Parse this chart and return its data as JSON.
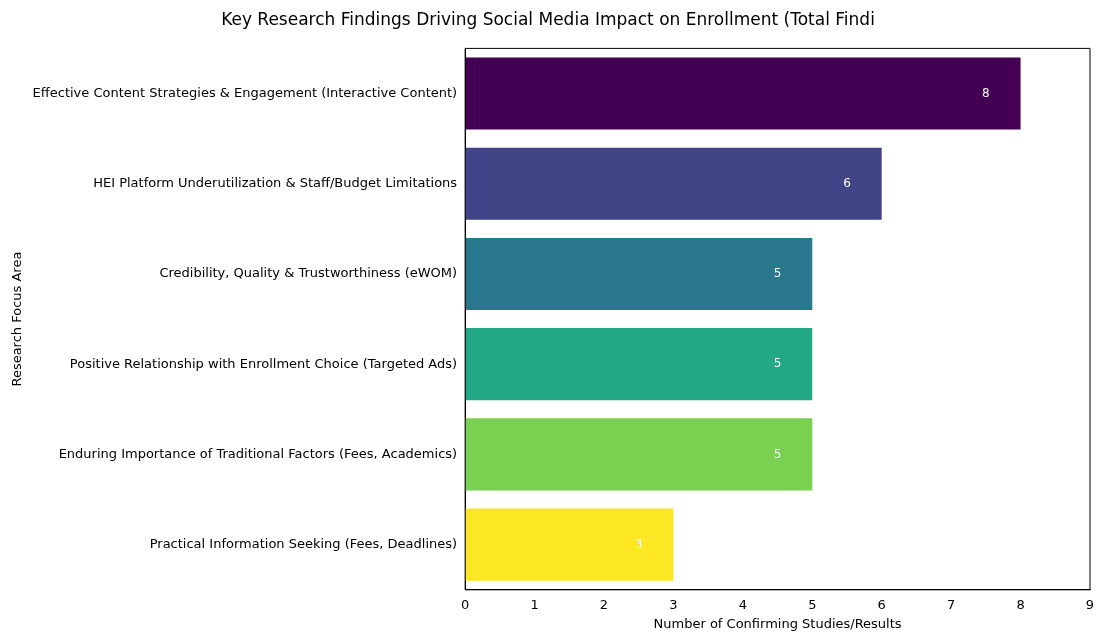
{
  "chart_data": {
    "type": "bar",
    "orientation": "horizontal",
    "title": "Key Research Findings Driving Social Media Impact on Enrollment (Total Findi",
    "xlabel": "Number of Confirming Studies/Results",
    "ylabel": "Research Focus Area",
    "categories": [
      "Effective Content Strategies & Engagement (Interactive Content)",
      "HEI Platform Underutilization & Staff/Budget Limitations",
      "Credibility, Quality & Trustworthiness (eWOM)",
      "Positive Relationship with Enrollment Choice (Targeted Ads)",
      "Enduring Importance of Traditional Factors (Fees, Academics)",
      "Practical Information Seeking (Fees, Deadlines)"
    ],
    "values": [
      8,
      6,
      5,
      5,
      5,
      3
    ],
    "colors": [
      "#440154",
      "#414487",
      "#2a788e",
      "#22a884",
      "#7ad151",
      "#fde725"
    ],
    "xlim": [
      0,
      9
    ],
    "xticks": [
      0,
      1,
      2,
      3,
      4,
      5,
      6,
      7,
      8,
      9
    ],
    "grid": false,
    "legend": false,
    "data_labels": true
  }
}
